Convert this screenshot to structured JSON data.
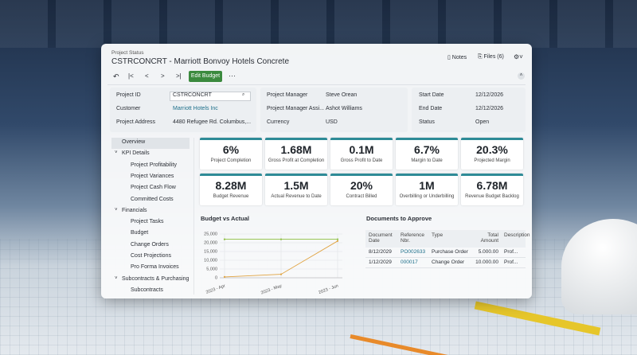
{
  "header": {
    "breadcrumb": "Project Status",
    "title": "CSTRCONCRT - Marriott Bonvoy Hotels Concrete",
    "notes": "Notes",
    "files": "Files (6)",
    "edit_button": "Edit Budget"
  },
  "info": [
    [
      {
        "label": "Project ID",
        "value": "CSTRCONCRT"
      },
      {
        "label": "Customer",
        "value": "Marriott Hotels Inc"
      },
      {
        "label": "Project Address",
        "value": "4480 Refugee Rd. Columbus,..."
      }
    ],
    [
      {
        "label": "Project Manager",
        "value": "Steve Orean"
      },
      {
        "label": "Project Manager Assi...",
        "value": "Ashot Williams"
      },
      {
        "label": "Currency",
        "value": "USD"
      }
    ],
    [
      {
        "label": "Start Date",
        "value": "12/12/2026"
      },
      {
        "label": "End Date",
        "value": "12/12/2026"
      },
      {
        "label": "Status",
        "value": "Open"
      }
    ]
  ],
  "sidebar": {
    "overview": "Overview",
    "groups": [
      {
        "title": "KPI Details",
        "items": [
          "Project Profitability",
          "Project Variances",
          "Project Cash Flow",
          "Committed Costs"
        ]
      },
      {
        "title": "Financials",
        "items": [
          "Project Tasks",
          "Budget",
          "Change Orders",
          "Cost Projections",
          "Pro Forma Invoices"
        ]
      },
      {
        "title": "Subcontracts & Purchasing",
        "items": [
          "Subcontracts"
        ]
      }
    ]
  },
  "kpis": [
    {
      "value": "6%",
      "label": "Project Completion"
    },
    {
      "value": "1.68M",
      "label": "Gross Profit at Completion"
    },
    {
      "value": "0.1M",
      "label": "Gross Profit to Date"
    },
    {
      "value": "6.7%",
      "label": "Margin to Date"
    },
    {
      "value": "20.3%",
      "label": "Projected Margin"
    },
    {
      "value": "8.28M",
      "label": "Budget Revenue"
    },
    {
      "value": "1.5M",
      "label": "Actual Revenue to Date"
    },
    {
      "value": "20%",
      "label": "Contract Billed"
    },
    {
      "value": "1M",
      "label": "Overbilling or Underbilling"
    },
    {
      "value": "6.78M",
      "label": "Revenue Budget Backlog"
    }
  ],
  "chart_data": {
    "type": "line",
    "title": "Budget vs Actual",
    "categories": [
      "2023 - Apr",
      "2023 - May",
      "2023 - Jun"
    ],
    "series": [
      {
        "color": "#8dbf3f",
        "values": [
          22000,
          22000,
          22000
        ]
      },
      {
        "color": "#e0a340",
        "values": [
          500,
          2000,
          21000
        ]
      }
    ],
    "ylim": [
      0,
      25000
    ],
    "yticks": [
      0,
      {
        "value": 5000,
        "label": "5,000"
      },
      {
        "value": 10000,
        "label": "10,000"
      },
      {
        "value": 15000,
        "label": "15,000"
      },
      {
        "value": 20000,
        "label": "20,000"
      },
      {
        "value": 25000,
        "label": "25,000"
      }
    ],
    "grid": true
  },
  "documents": {
    "title": "Documents to Approve",
    "columns": [
      "Document Date",
      "Reference Nbr.",
      "Type",
      "Total Amount",
      "Description"
    ],
    "rows": [
      [
        "8/12/2029",
        "PO002633",
        "Purchase Order",
        "5.000.00",
        "Prof..."
      ],
      [
        "1/12/2029",
        "000017",
        "Change Order",
        "10.000.00",
        "Prof..."
      ]
    ]
  }
}
